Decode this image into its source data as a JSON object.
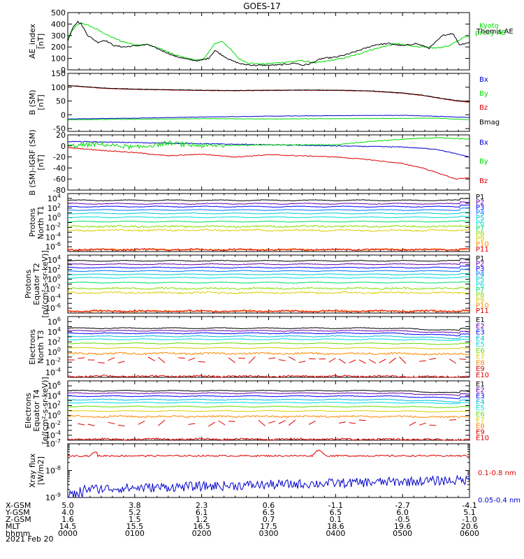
{
  "title": "GOES-17",
  "date_label": "2021 Feb 20",
  "ephemeris": {
    "rows": [
      {
        "label": "X-GSM",
        "values": [
          "5.0",
          "3.8",
          "2.3",
          "0.6",
          "-1.1",
          "-2.7",
          "-4.1"
        ]
      },
      {
        "label": "Y-GSM",
        "values": [
          "4.0",
          "5.2",
          "6.1",
          "6.5",
          "6.5",
          "6.0",
          "5.1"
        ]
      },
      {
        "label": "Z-GSM",
        "values": [
          "1.6",
          "1.5",
          "1.2",
          "0.7",
          "0.1",
          "-0.5",
          "-1.0"
        ]
      },
      {
        "label": "MLT",
        "values": [
          "14.5",
          "15.5",
          "16.5",
          "17.5",
          "18.6",
          "19.6",
          "20.6"
        ]
      },
      {
        "label": "hhmm",
        "values": [
          "0000",
          "0100",
          "0200",
          "0300",
          "0400",
          "0500",
          "0600"
        ]
      }
    ]
  },
  "colors": {
    "black": "#000000",
    "green": "#00dd00",
    "blue": "#0000cc",
    "red": "#dd0000",
    "p_colors": [
      "#000000",
      "#6600aa",
      "#0000ff",
      "#0077ff",
      "#00cccc",
      "#00dddd",
      "#00dd66",
      "#88dd00",
      "#ddcc00",
      "#ff8800",
      "#dd0000"
    ],
    "e_colors": [
      "#000000",
      "#6600aa",
      "#0000ff",
      "#00bbdd",
      "#00dddd",
      "#66dd00",
      "#ddcc00",
      "#ff8800",
      "#dd0000",
      "#dd0000"
    ]
  },
  "chart_data": [
    {
      "type": "line",
      "ylabel": "AE_index\n[nT]",
      "ylim": [
        0,
        500
      ],
      "yticks": [
        "0",
        "100",
        "200",
        "300",
        "400",
        "500"
      ],
      "x_range_hours": [
        0,
        6
      ],
      "series": [
        {
          "name": "Kyoto proxy AE",
          "color": "#00dd00",
          "x": [
            0,
            0.1,
            0.2,
            0.3,
            0.45,
            0.6,
            0.8,
            1.0,
            1.2,
            1.4,
            1.6,
            1.8,
            2.0,
            2.1,
            2.2,
            2.3,
            2.4,
            2.55,
            2.7,
            2.9,
            3.1,
            3.3,
            3.5,
            3.7,
            3.9,
            4.1,
            4.3,
            4.5,
            4.7,
            4.9,
            5.1,
            5.3,
            5.5,
            5.7,
            5.9,
            6.0
          ],
          "y": [
            280,
            370,
            410,
            390,
            350,
            300,
            250,
            220,
            220,
            180,
            130,
            100,
            80,
            150,
            230,
            250,
            200,
            100,
            60,
            50,
            60,
            70,
            80,
            60,
            80,
            100,
            130,
            170,
            200,
            230,
            210,
            200,
            190,
            210,
            280,
            300
          ]
        },
        {
          "name": "Themis AE",
          "color": "#000000",
          "x": [
            0,
            0.08,
            0.15,
            0.2,
            0.3,
            0.45,
            0.55,
            0.7,
            0.85,
            1.0,
            1.2,
            1.4,
            1.6,
            1.8,
            1.95,
            2.1,
            2.2,
            2.3,
            2.45,
            2.6,
            2.8,
            3.0,
            3.2,
            3.4,
            3.5,
            3.6,
            3.8,
            4.0,
            4.2,
            4.4,
            4.6,
            4.8,
            5.0,
            5.2,
            5.4,
            5.6,
            5.75,
            5.85,
            6.0
          ],
          "y": [
            250,
            380,
            420,
            400,
            300,
            240,
            260,
            210,
            200,
            210,
            220,
            170,
            120,
            90,
            80,
            100,
            170,
            130,
            80,
            50,
            40,
            40,
            45,
            60,
            40,
            50,
            100,
            110,
            140,
            180,
            220,
            230,
            210,
            230,
            190,
            300,
            320,
            220,
            240
          ]
        }
      ]
    },
    {
      "type": "line",
      "ylabel": "B (SM)\n[nT]",
      "ylim": [
        -60,
        150
      ],
      "yticks": [
        "-50",
        "0",
        "50",
        "100",
        "150"
      ],
      "ytick_values": [
        -50,
        0,
        50,
        100,
        150
      ],
      "series": [
        {
          "name": "Bx",
          "color": "#0000cc",
          "x": [
            0,
            1,
            2,
            3,
            4,
            5,
            5.5,
            6
          ],
          "y": [
            -15,
            -12,
            -8,
            -5,
            -3,
            -2,
            -5,
            -10
          ]
        },
        {
          "name": "By",
          "color": "#00dd00",
          "x": [
            0,
            1,
            2,
            3,
            4,
            5,
            5.5,
            6
          ],
          "y": [
            -18,
            -16,
            -14,
            -15,
            -14,
            -13,
            -12,
            -18
          ]
        },
        {
          "name": "Bz",
          "color": "#dd0000",
          "x": [
            0,
            0.3,
            0.6,
            1,
            1.5,
            2,
            2.5,
            3,
            3.5,
            4,
            4.5,
            5,
            5.3,
            5.6,
            5.8,
            6
          ],
          "y": [
            105,
            100,
            95,
            92,
            90,
            88,
            87,
            88,
            89,
            88,
            86,
            78,
            70,
            58,
            50,
            45
          ]
        },
        {
          "name": "Bmag",
          "color": "#000000",
          "x": [
            0,
            0.3,
            0.6,
            1,
            1.5,
            2,
            2.5,
            3,
            3.5,
            4,
            4.5,
            5,
            5.3,
            5.6,
            5.8,
            6
          ],
          "y": [
            106,
            101,
            96,
            93,
            91,
            89,
            88,
            89,
            90,
            89,
            87,
            79,
            71,
            59,
            52,
            48
          ]
        }
      ]
    },
    {
      "type": "line",
      "ylabel": "B (SM)-IGRF (SM)\n[nT]",
      "ylim": [
        -80,
        20
      ],
      "yticks": [
        "-80",
        "-60",
        "-40",
        "-20",
        "0",
        "20"
      ],
      "ytick_values": [
        -80,
        -60,
        -40,
        -20,
        0,
        20
      ],
      "series": [
        {
          "name": "Bx",
          "color": "#0000cc",
          "x": [
            0,
            1,
            2,
            3,
            4,
            5,
            5.5,
            6
          ],
          "y": [
            8,
            6,
            4,
            2,
            0,
            -2,
            -6,
            -20
          ]
        },
        {
          "name": "By",
          "color": "#00dd00",
          "x": [
            0,
            0.5,
            1,
            1.5,
            2,
            3,
            4,
            4.5,
            5,
            5.5,
            6
          ],
          "y": [
            0,
            3,
            -3,
            5,
            0,
            2,
            2,
            8,
            12,
            15,
            12
          ]
        },
        {
          "name": "Bz",
          "color": "#dd0000",
          "x": [
            0,
            0.5,
            1,
            1.5,
            2,
            2.5,
            3,
            3.5,
            4,
            4.5,
            5,
            5.3,
            5.6,
            5.8,
            6
          ],
          "y": [
            -3,
            -8,
            -12,
            -18,
            -15,
            -20,
            -16,
            -18,
            -20,
            -25,
            -32,
            -40,
            -52,
            -60,
            -58
          ]
        }
      ]
    },
    {
      "type": "line",
      "ylabel": "Protons\nNorth T1",
      "log": true,
      "ylim_exp": [
        -7,
        5
      ],
      "ytick_exps": [
        -6,
        -4,
        -2,
        0,
        2,
        4
      ],
      "legend": [
        "P1",
        "P2",
        "P3",
        "P4",
        "P5",
        "P6",
        "P7",
        "P8",
        "P9",
        "P10",
        "P11"
      ],
      "levels_exp": [
        3.6,
        2.9,
        2.3,
        1.6,
        0.9,
        0.1,
        -0.8,
        -1.8,
        -2.6,
        -6.6,
        -6.6
      ]
    },
    {
      "type": "line",
      "ylabel": "Protons\nEquator T2\n[p/(cm²-s-sr-keV)]",
      "log": true,
      "ylim_exp": [
        -7,
        5
      ],
      "ytick_exps": [
        -6,
        -4,
        -2,
        0,
        2,
        4
      ],
      "legend": [
        "P1",
        "P2",
        "P3",
        "P4",
        "P5",
        "P6",
        "P7",
        "P8",
        "P9",
        "P10",
        "P11"
      ],
      "levels_exp": [
        3.8,
        3.1,
        2.4,
        1.7,
        1.0,
        0.3,
        -0.7,
        -1.9,
        -2.8,
        -6.6,
        -6.6
      ]
    },
    {
      "type": "line",
      "ylabel": "Electrons\nNorth T3",
      "log": true,
      "ylim_exp": [
        -5,
        7
      ],
      "ytick_exps": [
        -4,
        -2,
        0,
        2,
        4,
        6
      ],
      "legend": [
        "E1",
        "E2",
        "E3",
        "E4",
        "E5",
        "E6",
        "E7",
        "E8",
        "E9",
        "E10"
      ],
      "levels_exp": [
        4.7,
        4.2,
        3.7,
        3.1,
        2.5,
        1.7,
        0.8,
        -0.3,
        -1.6,
        -4.8
      ]
    },
    {
      "type": "line",
      "ylabel": "Electrons\nEquator T4\n[e/(cm²-s-sr-keV)]",
      "log": true,
      "ylim_exp": [
        -5,
        7
      ],
      "ytick_exps": [
        -4,
        -2,
        0,
        2,
        4,
        6
      ],
      "legend": [
        "E1",
        "E2",
        "E3",
        "E4",
        "E5",
        "E6",
        "E7",
        "E8",
        "E9",
        "E10"
      ],
      "levels_exp": [
        5.0,
        4.5,
        3.9,
        3.2,
        2.6,
        1.8,
        0.9,
        -0.2,
        -1.5,
        -4.8
      ]
    },
    {
      "type": "line",
      "ylabel": "Xray flux\n[W/m2]",
      "log": true,
      "ylim_exp": [
        -9,
        -7
      ],
      "ytick_exps": [
        -9,
        -8,
        -7
      ],
      "series": [
        {
          "name": "0.1-0.8 nm",
          "color": "#dd0000",
          "level_exp": -7.45
        },
        {
          "name": "0.05-0.4 nm",
          "color": "#0000cc",
          "level_exp": -8.6
        }
      ]
    }
  ]
}
